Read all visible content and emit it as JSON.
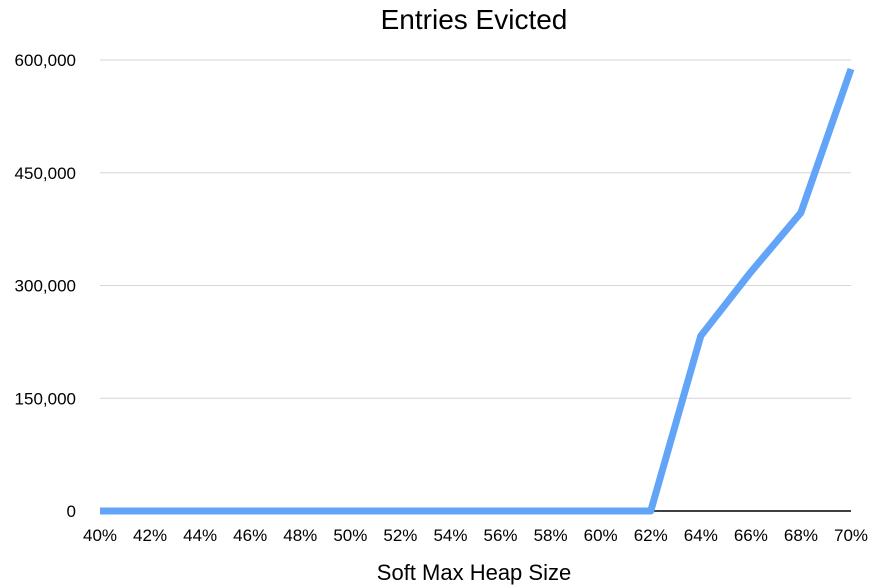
{
  "chart_data": {
    "type": "line",
    "title": "Entries Evicted",
    "xlabel": "Soft Max Heap Size",
    "ylabel": "",
    "categories": [
      "40%",
      "42%",
      "44%",
      "46%",
      "48%",
      "50%",
      "52%",
      "54%",
      "56%",
      "58%",
      "60%",
      "62%",
      "64%",
      "66%",
      "68%",
      "70%"
    ],
    "series": [
      {
        "values": [
          0,
          0,
          0,
          0,
          0,
          0,
          0,
          0,
          0,
          0,
          0,
          0,
          233000,
          318000,
          397000,
          588000
        ]
      }
    ],
    "ylim": [
      0,
      600000
    ],
    "yticks": [
      0,
      150000,
      300000,
      450000,
      600000
    ],
    "ytick_labels": [
      "0",
      "150,000",
      "300,000",
      "450,000",
      "600,000"
    ],
    "grid": true,
    "legend": "none",
    "colors": {
      "line": "#62a4f7",
      "grid": "#d6d6d6",
      "baseline": "#000000"
    }
  }
}
